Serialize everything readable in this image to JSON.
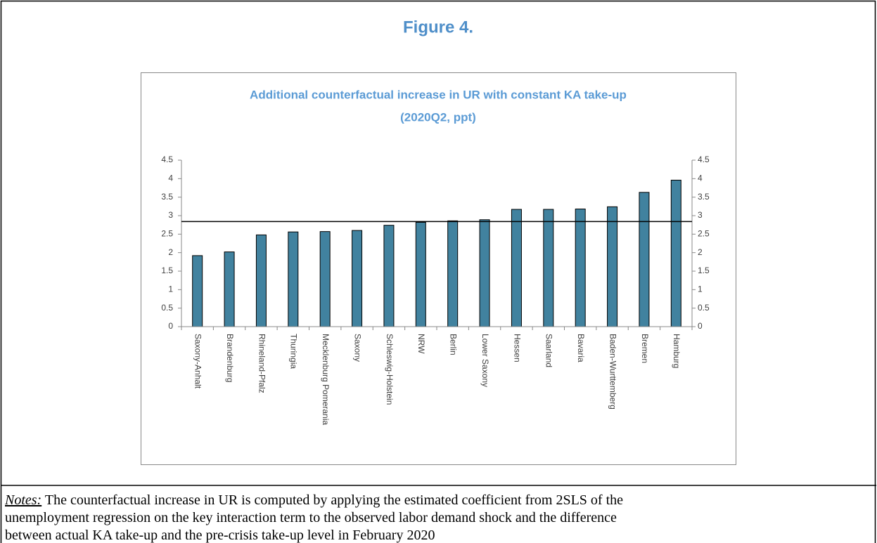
{
  "header": {
    "title": "Figure 4."
  },
  "chart_data": {
    "type": "bar",
    "title": [
      "Additional counterfactual increase in UR with constant KA take-up",
      "(2020Q2, ppt)"
    ],
    "categories": [
      "Saxony-Anhalt",
      "Brandenburg",
      "Rhineland-Pfalz",
      "Thuringia",
      "Mecklenburg Pomerania",
      "Saxony",
      "Schleswig-Holstein",
      "NRW",
      "Berlin",
      "Lower Saxony",
      "Hessen",
      "Saarland",
      "Bavaria",
      "Baden-Wurttemberg",
      "Bremen",
      "Hamburg"
    ],
    "values": [
      1.92,
      2.02,
      2.48,
      2.56,
      2.57,
      2.6,
      2.74,
      2.82,
      2.86,
      2.89,
      3.17,
      3.17,
      3.18,
      3.24,
      3.63,
      3.96
    ],
    "color": "#41829f",
    "reference_line": 2.84,
    "ylim": [
      0,
      4.5
    ],
    "yticks": [
      0,
      0.5,
      1,
      1.5,
      2,
      2.5,
      3,
      3.5,
      4,
      4.5
    ],
    "y2lim": [
      0,
      4.5
    ],
    "y2ticks": [
      0,
      0.5,
      1,
      1.5,
      2,
      2.5,
      3,
      3.5,
      4,
      4.5
    ],
    "grid": false
  },
  "notes": {
    "label": "Notes:",
    "lines": [
      " The counterfactual increase in UR is computed by applying the estimated coefficient from 2SLS of the",
      "unemployment regression on the key interaction term to the observed labor demand shock and the difference",
      "between actual KA take-up and the pre-crisis take-up level in February 2020"
    ]
  }
}
